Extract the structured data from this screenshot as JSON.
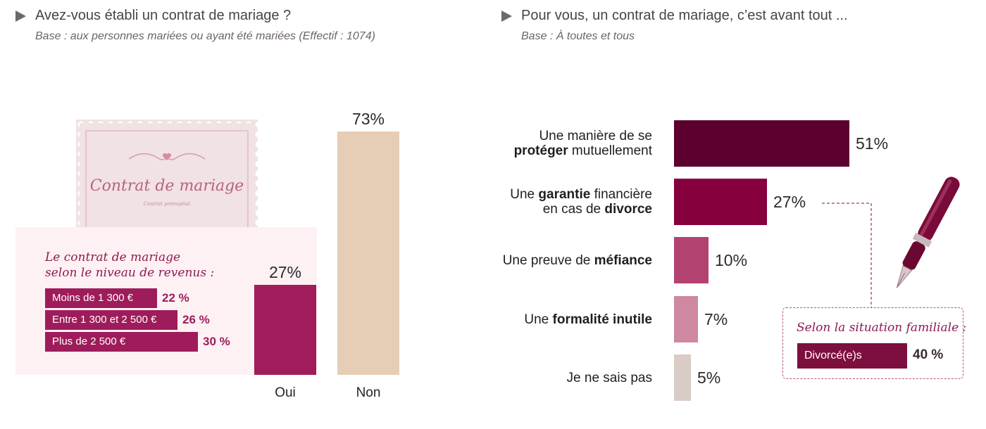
{
  "colors": {
    "oui": "#a01c5a",
    "non": "#e6cdb5",
    "hbar1": "#5c0030",
    "hbar2": "#85003d",
    "hbar3": "#b24371",
    "hbar4": "#cf88a2",
    "hbar5": "#d9ccc6",
    "income": "#9e1c5b",
    "divorce": "#7d0f3f",
    "stamp_bg": "#f3e5e7"
  },
  "left": {
    "title": "Avez-vous établi un contrat de mariage ?",
    "base": "Base : aux personnes mariées ou ayant été mariées (Effectif : 1074)",
    "stamp": {
      "title": "Contrat de mariage",
      "subtitle": "Contrat prénuptial"
    },
    "income_box": {
      "title_line1": "Le contrat de mariage",
      "title_line2": "selon le niveau de revenus :",
      "rows": [
        {
          "label": "Moins de 1 300 €",
          "value": "22 %",
          "pct": 22
        },
        {
          "label": "Entre 1 300 et 2 500 €",
          "value": "26 %",
          "pct": 26
        },
        {
          "label": "Plus de 2 500 €",
          "value": "30 %",
          "pct": 30
        }
      ]
    }
  },
  "right": {
    "title": "Pour vous, un contrat de mariage, c’est avant tout ...",
    "base": "Base : À toutes et tous",
    "callout": {
      "title": "Selon la situation familiale :",
      "label": "Divorcé(e)s",
      "value": "40 %",
      "pct": 40
    }
  },
  "chart_data": [
    {
      "type": "bar",
      "title": "Avez-vous établi un contrat de mariage ?",
      "categories": [
        "Oui",
        "Non"
      ],
      "values": [
        27,
        73
      ],
      "value_labels": [
        "27%",
        "73%"
      ],
      "ylim": [
        0,
        100
      ]
    },
    {
      "type": "bar",
      "orientation": "horizontal",
      "title": "Pour vous, un contrat de mariage, c’est avant tout ...",
      "categories": [
        "Une manière de se protéger mutuellement",
        "Une garantie financière en cas de divorce",
        "Une preuve de méfiance",
        "Une formalité inutile",
        "Je ne sais pas"
      ],
      "label_lines": [
        [
          [
            {
              "t": "Une manière de se",
              "b": false
            }
          ],
          [
            {
              "t": "protéger",
              "b": true
            },
            {
              "t": " mutuellement",
              "b": false
            }
          ]
        ],
        [
          [
            {
              "t": "Une ",
              "b": false
            },
            {
              "t": "garantie",
              "b": true
            },
            {
              "t": " financière",
              "b": false
            }
          ],
          [
            {
              "t": "en cas de ",
              "b": false
            },
            {
              "t": "divorce",
              "b": true
            }
          ]
        ],
        [
          [
            {
              "t": "Une preuve de ",
              "b": false
            },
            {
              "t": "méfiance",
              "b": true
            }
          ]
        ],
        [
          [
            {
              "t": "Une ",
              "b": false
            },
            {
              "t": "formalité inutile",
              "b": true
            }
          ]
        ],
        [
          [
            {
              "t": "Je ne sais pas",
              "b": false
            }
          ]
        ]
      ],
      "values": [
        51,
        27,
        10,
        7,
        5
      ],
      "value_labels": [
        "51%",
        "27%",
        "10%",
        "7%",
        "5%"
      ]
    }
  ]
}
